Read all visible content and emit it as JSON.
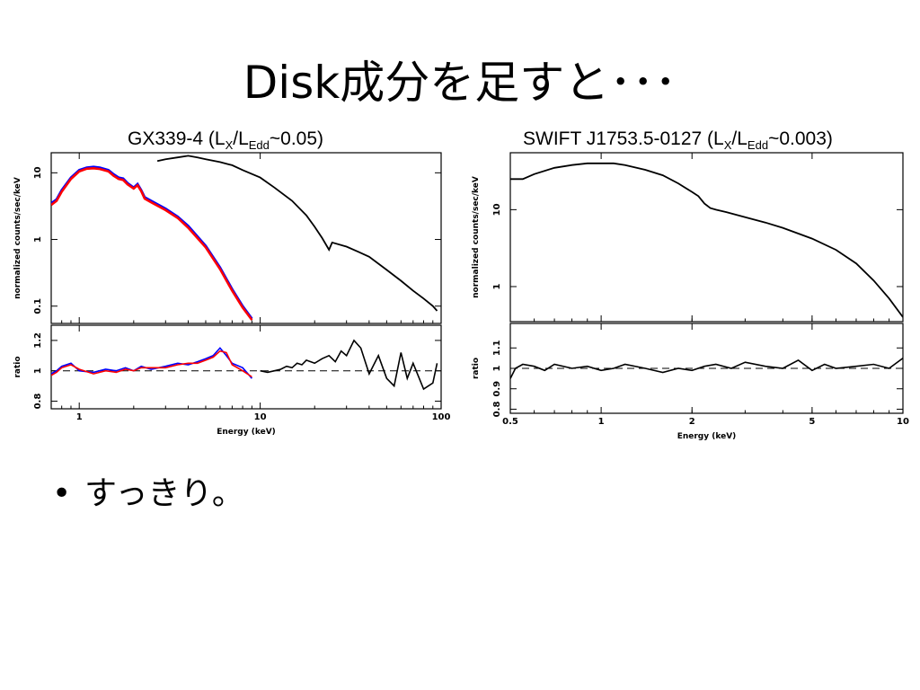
{
  "slide": {
    "title": "Disk成分を足すと･･･",
    "bullets": [
      "すっきり。"
    ]
  },
  "chart_data": [
    {
      "type": "line",
      "caption": {
        "prefix": "GX339-4 (L",
        "sub1": "X",
        "mid": "/L",
        "sub2": "Edd",
        "suffix": "~0.05)"
      },
      "xlabel": "Energy (keV)",
      "xscale": "log",
      "xlim": [
        0.7,
        100
      ],
      "xticks": [
        1,
        10,
        100
      ],
      "xtick_labels": [
        "1",
        "10",
        "100"
      ],
      "top_panel": {
        "ylabel": "normalized counts/sec/keV",
        "yscale": "log",
        "ylim": [
          0.055,
          20
        ],
        "yticks": [
          0.1,
          1,
          10
        ],
        "ytick_labels": [
          "0.1",
          "1",
          "10"
        ],
        "series": [
          {
            "color": "#0000ff",
            "x": [
              0.7,
              0.75,
              0.8,
              0.9,
              1.0,
              1.1,
              1.2,
              1.3,
              1.45,
              1.55,
              1.65,
              1.75,
              1.85,
              2.0,
              2.1,
              2.2,
              2.3,
              2.5,
              3.0,
              3.5,
              4.0,
              5.0,
              6.0,
              7.0,
              8.0,
              9.0
            ],
            "y": [
              3.5,
              4.0,
              5.5,
              8.5,
              11.0,
              12.0,
              12.3,
              12.0,
              11.0,
              9.5,
              8.5,
              8.2,
              7.0,
              6.0,
              6.8,
              5.5,
              4.3,
              3.8,
              2.9,
              2.2,
              1.6,
              0.8,
              0.38,
              0.18,
              0.1,
              0.065
            ]
          },
          {
            "color": "#ff0000",
            "x": [
              0.7,
              0.75,
              0.8,
              0.9,
              1.0,
              1.1,
              1.2,
              1.3,
              1.45,
              1.55,
              1.65,
              1.75,
              1.85,
              2.0,
              2.1,
              2.2,
              2.3,
              2.5,
              3.0,
              3.5,
              4.0,
              5.0,
              6.0,
              7.0,
              8.0,
              9.0
            ],
            "y": [
              3.3,
              3.8,
              5.2,
              8.1,
              10.5,
              11.5,
              11.7,
              11.4,
              10.5,
              9.0,
              8.1,
              7.8,
              6.7,
              5.8,
              6.5,
              5.3,
              4.1,
              3.6,
              2.75,
              2.1,
              1.5,
              0.76,
              0.36,
              0.17,
              0.095,
              0.062
            ]
          },
          {
            "color": "#000000",
            "x": [
              2.7,
              3.0,
              3.5,
              4.0,
              4.5,
              5.0,
              6.0,
              7.0,
              8.0,
              10.0,
              12.0,
              15.0,
              18.0,
              20.0,
              22.0,
              24.0,
              25.0,
              30.0,
              35.0,
              40.0,
              50.0,
              60.0,
              70.0,
              80.0,
              90.0,
              95.0
            ],
            "y": [
              15,
              16,
              17,
              18,
              17,
              16,
              14.5,
              13.0,
              11.0,
              8.5,
              6.0,
              3.8,
              2.3,
              1.55,
              1.05,
              0.7,
              0.9,
              0.78,
              0.65,
              0.55,
              0.35,
              0.24,
              0.17,
              0.13,
              0.1,
              0.085
            ]
          }
        ]
      },
      "bottom_panel": {
        "ylabel": "ratio",
        "ylim": [
          0.75,
          1.3
        ],
        "yticks": [
          0.8,
          1.0,
          1.2
        ],
        "ytick_labels": [
          "0.8",
          "1",
          "1.2"
        ],
        "reference": 1.0,
        "series": [
          {
            "color": "#0000ff",
            "x": [
              0.7,
              0.75,
              0.8,
              0.9,
              1.0,
              1.2,
              1.4,
              1.6,
              1.8,
              2.0,
              2.2,
              2.5,
              3.0,
              3.5,
              4.0,
              4.5,
              5.0,
              5.5,
              6.0,
              6.5,
              7.0,
              8.0,
              9.0
            ],
            "y": [
              0.98,
              1.0,
              1.03,
              1.05,
              1.0,
              0.99,
              1.01,
              1.0,
              1.02,
              1.0,
              1.03,
              1.01,
              1.03,
              1.05,
              1.04,
              1.06,
              1.08,
              1.1,
              1.15,
              1.1,
              1.05,
              1.02,
              0.95
            ]
          },
          {
            "color": "#ff0000",
            "x": [
              0.7,
              0.75,
              0.8,
              0.9,
              1.0,
              1.2,
              1.4,
              1.6,
              1.8,
              2.0,
              2.2,
              2.5,
              3.0,
              3.5,
              4.0,
              4.5,
              5.0,
              5.5,
              6.0,
              6.5,
              7.0,
              8.0,
              9.0
            ],
            "y": [
              0.97,
              0.99,
              1.02,
              1.04,
              1.01,
              0.98,
              1.0,
              0.99,
              1.01,
              1.0,
              1.02,
              1.02,
              1.02,
              1.04,
              1.05,
              1.05,
              1.07,
              1.09,
              1.13,
              1.12,
              1.04,
              1.0,
              0.96
            ]
          },
          {
            "color": "#000000",
            "x": [
              10,
              11,
              12,
              13,
              14,
              15,
              16,
              17,
              18,
              20,
              22,
              24,
              26,
              28,
              30,
              33,
              36,
              40,
              45,
              50,
              55,
              60,
              65,
              70,
              80,
              90,
              95
            ],
            "y": [
              1.0,
              0.99,
              1.0,
              1.01,
              1.03,
              1.02,
              1.05,
              1.04,
              1.07,
              1.05,
              1.08,
              1.1,
              1.06,
              1.13,
              1.1,
              1.2,
              1.15,
              0.98,
              1.1,
              0.95,
              0.9,
              1.12,
              0.95,
              1.05,
              0.88,
              0.92,
              1.05
            ]
          }
        ]
      }
    },
    {
      "type": "line",
      "caption": {
        "prefix": "SWIFT J1753.5-0127 (L",
        "sub1": "X",
        "mid": "/L",
        "sub2": "Edd",
        "suffix": "~0.003)"
      },
      "xlabel": "Energy (keV)",
      "xscale": "log",
      "xlim": [
        0.5,
        10
      ],
      "xticks": [
        0.5,
        1,
        2,
        5,
        10
      ],
      "xtick_labels": [
        "0.5",
        "1",
        "2",
        "5",
        "10"
      ],
      "top_panel": {
        "ylabel": "normalized counts/sec/keV",
        "yscale": "log",
        "ylim": [
          0.35,
          55
        ],
        "yticks": [
          1,
          10
        ],
        "ytick_labels": [
          "1",
          "10"
        ],
        "series": [
          {
            "color": "#000000",
            "x": [
              0.5,
              0.55,
              0.6,
              0.7,
              0.8,
              0.9,
              1.0,
              1.1,
              1.2,
              1.4,
              1.6,
              1.8,
              2.0,
              2.1,
              2.2,
              2.3,
              2.4,
              2.6,
              3.0,
              3.5,
              4.0,
              5.0,
              6.0,
              7.0,
              8.0,
              9.0,
              10.0
            ],
            "y": [
              25,
              25,
              29,
              35,
              38,
              40,
              40,
              40,
              38,
              33,
              28,
              22,
              17,
              15,
              12,
              10.5,
              10,
              9.3,
              8.0,
              6.8,
              5.8,
              4.2,
              3.0,
              2.0,
              1.2,
              0.7,
              0.4
            ]
          }
        ]
      },
      "bottom_panel": {
        "ylabel": "ratio",
        "ylim": [
          0.78,
          1.22
        ],
        "yticks": [
          0.8,
          0.9,
          1.0,
          1.1
        ],
        "ytick_labels": [
          "0.8",
          "0.9",
          "1",
          "1.1"
        ],
        "reference": 1.0,
        "series": [
          {
            "color": "#000000",
            "x": [
              0.5,
              0.52,
              0.55,
              0.6,
              0.65,
              0.7,
              0.8,
              0.9,
              1.0,
              1.1,
              1.2,
              1.4,
              1.6,
              1.8,
              2.0,
              2.2,
              2.4,
              2.7,
              3.0,
              3.5,
              4.0,
              4.5,
              5.0,
              5.5,
              6.0,
              7.0,
              8.0,
              9.0,
              10.0
            ],
            "y": [
              0.95,
              1.0,
              1.02,
              1.01,
              0.99,
              1.02,
              1.0,
              1.01,
              0.99,
              1.0,
              1.02,
              1.0,
              0.98,
              1.0,
              0.99,
              1.01,
              1.02,
              1.0,
              1.03,
              1.01,
              1.0,
              1.04,
              0.99,
              1.02,
              1.0,
              1.01,
              1.02,
              1.0,
              1.05
            ]
          }
        ]
      }
    }
  ]
}
